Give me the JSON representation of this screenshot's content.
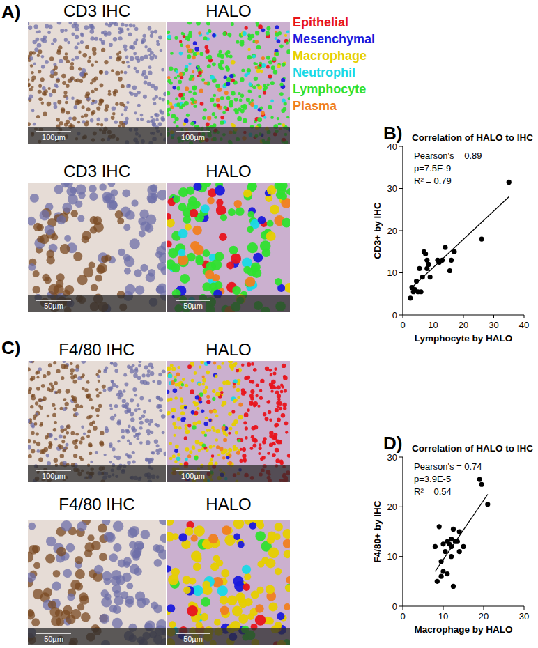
{
  "figure": {
    "panel_labels": [
      "A)",
      "B)",
      "C)",
      "D)"
    ],
    "legend": [
      {
        "name": "Epithelial",
        "color": "#e8141c"
      },
      {
        "name": "Mesenchymal",
        "color": "#1a1adc"
      },
      {
        "name": "Macrophage",
        "color": "#e6cf00"
      },
      {
        "name": "Neutrophil",
        "color": "#19d9e6"
      },
      {
        "name": "Lymphocyte",
        "color": "#2fe02f"
      },
      {
        "name": "Plasma",
        "color": "#f08020"
      }
    ],
    "image_rows": [
      {
        "left_title": "CD3 IHC",
        "right_title": "HALO",
        "scale_bar": "100µm"
      },
      {
        "left_title": "CD3 IHC",
        "right_title": "HALO",
        "scale_bar": "50µm"
      },
      {
        "left_title": "F4/80 IHC",
        "right_title": "HALO",
        "scale_bar": "100µm"
      },
      {
        "left_title": "F4/80 IHC",
        "right_title": "HALO",
        "scale_bar": "50µm"
      }
    ]
  },
  "chart_data": [
    {
      "type": "scatter",
      "title": "Correlation of HALO to IHC",
      "x_label": "Lymphocyte by HALO",
      "y_label": "CD3+ by IHC",
      "annotations": [
        "Pearson's = 0.89",
        "p=7.5E-9",
        "R² = 0.79"
      ],
      "x": [
        2.5,
        3,
        3.5,
        4,
        4.5,
        5,
        5.5,
        6,
        6.5,
        7,
        7.5,
        8,
        8,
        8.5,
        9,
        11.5,
        12,
        13,
        14,
        15.5,
        16,
        17,
        26,
        35
      ],
      "values": [
        4,
        6.5,
        5.5,
        6,
        8,
        5.5,
        11,
        5.5,
        9,
        15,
        14.5,
        13,
        11,
        12,
        9,
        13,
        12.5,
        13,
        16,
        10.5,
        13,
        15,
        18,
        31.5
      ],
      "trendline": {
        "x": [
          2.5,
          35
        ],
        "values": [
          6.2,
          28
        ]
      },
      "color": "#000000",
      "marker": "circle",
      "grid": false,
      "xlim": [
        0,
        40
      ],
      "ylim": [
        0,
        40
      ],
      "xticks": [
        0,
        10,
        20,
        30,
        40
      ],
      "yticks": [
        0,
        10,
        20,
        30,
        40
      ]
    },
    {
      "type": "scatter",
      "title": "Correlation of HALO to IHC",
      "x_label": "Macrophage by HALO",
      "y_label": "F4/80+ by IHC",
      "annotations": [
        "Pearson's = 0.74",
        "p=3.9E-5",
        "R² = 0.54"
      ],
      "x": [
        8,
        8.5,
        9,
        9.5,
        9.5,
        10,
        10,
        10.5,
        11,
        11,
        11.5,
        12,
        12,
        12,
        12.5,
        12.5,
        13,
        13.5,
        14,
        14,
        15,
        19,
        19.5,
        21
      ],
      "values": [
        12,
        5,
        16,
        6,
        9,
        12.5,
        7,
        11,
        13,
        6.5,
        12.5,
        10,
        13.5,
        12,
        4,
        15.5,
        13,
        13,
        15,
        11,
        12,
        25.5,
        24.5,
        20.5
      ],
      "trendline": {
        "x": [
          8,
          21
        ],
        "values": [
          7,
          22.5
        ]
      },
      "color": "#000000",
      "marker": "circle",
      "grid": false,
      "xlim": [
        0,
        30
      ],
      "ylim": [
        0,
        30
      ],
      "xticks": [
        0,
        10,
        20,
        30
      ],
      "yticks": [
        0,
        10,
        20,
        30
      ]
    }
  ]
}
